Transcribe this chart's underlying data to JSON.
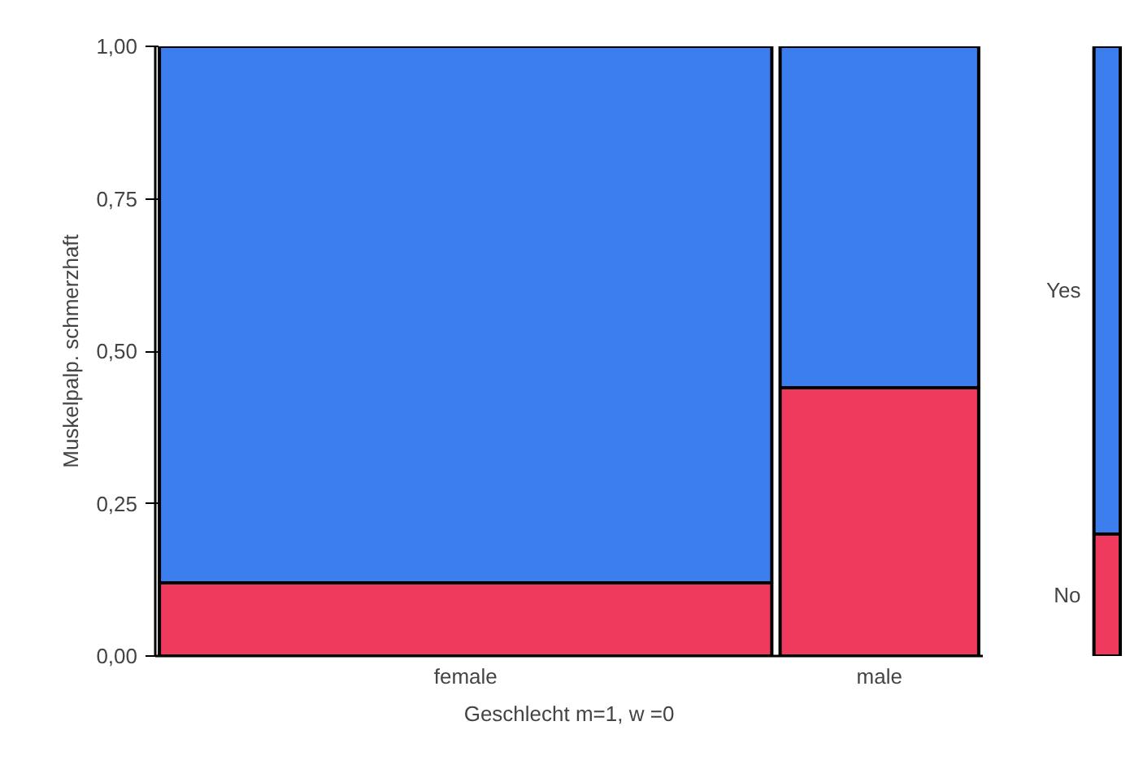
{
  "chart_data": {
    "type": "bar",
    "stacked": true,
    "xlabel": "Geschlecht m=1, w =0",
    "ylabel": "Muskelpalp. schmerzhaft",
    "categories": [
      "female",
      "male",
      null
    ],
    "series": [
      {
        "name": "No",
        "color": "#ef3a5d",
        "values": [
          0.12,
          0.44,
          0.2
        ]
      },
      {
        "name": "Yes",
        "color": "#3d7eef",
        "values": [
          0.88,
          0.56,
          0.8
        ]
      }
    ],
    "ylim": [
      0,
      1
    ],
    "yticks": [
      {
        "value": 0,
        "label": "0,00"
      },
      {
        "value": 0.25,
        "label": "0,25"
      },
      {
        "value": 0.5,
        "label": "0,50"
      },
      {
        "value": 0.75,
        "label": "0,75"
      },
      {
        "value": 1,
        "label": "1,00"
      }
    ],
    "grid": false,
    "legend": false
  }
}
